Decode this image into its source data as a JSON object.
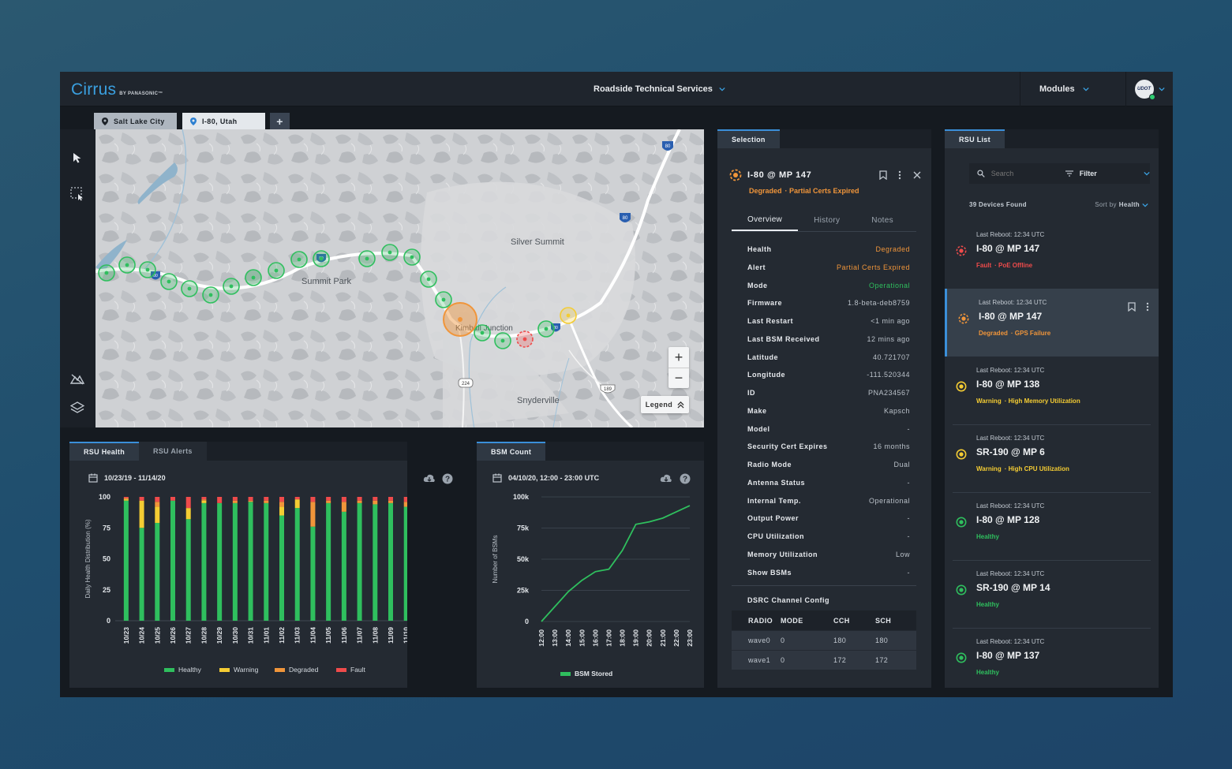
{
  "header": {
    "logo": "Cirrus",
    "logo_sub": "BY PANASONIC™",
    "org": "Roadside Technical Services",
    "modules": "Modules",
    "avatar_text": "UDOT"
  },
  "map_tabs": [
    "Salt Lake City",
    "I-80, Utah",
    "+"
  ],
  "map": {
    "labels": [
      "Silver Summit",
      "Summit Park",
      "Kimball Junction",
      "Snyderville"
    ],
    "shields": [
      "80",
      "80",
      "80",
      "80",
      "80",
      "224",
      "189"
    ],
    "legend": "Legend"
  },
  "health": {
    "tabs": [
      "RSU Health",
      "RSU Alerts"
    ],
    "date_range": "10/23/19 - 11/14/20",
    "chart_data": {
      "type": "bar",
      "stacked": true,
      "ylabel": "Daily Health Distribution (%)",
      "ylim": [
        0,
        100
      ],
      "yticks": [
        "100",
        "75",
        "50",
        "25",
        "0"
      ],
      "categories": [
        "10/23",
        "10/24",
        "10/25",
        "10/26",
        "10/27",
        "10/28",
        "10/29",
        "10/30",
        "10/31",
        "11/01",
        "11/02",
        "11/03",
        "11/04",
        "11/05",
        "11/06",
        "11/07",
        "11/08",
        "11/09",
        "11/10",
        "11/11",
        "11/12"
      ],
      "series": [
        {
          "name": "Healthy",
          "color": "#2fbf5e",
          "values": [
            97,
            75,
            79,
            97,
            82,
            95,
            95,
            95,
            96,
            95,
            85,
            91,
            76,
            95,
            88,
            95,
            94,
            95,
            92,
            95,
            93
          ]
        },
        {
          "name": "Warning",
          "color": "#f4cc33",
          "values": [
            1,
            22,
            13,
            0,
            9,
            2,
            0,
            0,
            0,
            0,
            7,
            7,
            0,
            0,
            0,
            0,
            0,
            0,
            0,
            0,
            0
          ]
        },
        {
          "name": "Degraded",
          "color": "#f0953a",
          "values": [
            1,
            0,
            4,
            0,
            0,
            1,
            0,
            2,
            1,
            2,
            4,
            0,
            20,
            2,
            8,
            2,
            3,
            2,
            4,
            2,
            4
          ]
        },
        {
          "name": "Fault",
          "color": "#ef4b4b",
          "values": [
            1,
            3,
            4,
            3,
            9,
            2,
            5,
            3,
            3,
            3,
            4,
            2,
            4,
            3,
            4,
            3,
            3,
            3,
            4,
            3,
            3
          ]
        }
      ]
    }
  },
  "bsm": {
    "tabs": [
      "BSM Count"
    ],
    "date_range": "04/10/20, 12:00 - 23:00 UTC",
    "chart_data": {
      "type": "line",
      "ylabel": "Number of BSMs",
      "ylim": [
        0,
        100000
      ],
      "yticks": [
        "100k",
        "75k",
        "50k",
        "25k",
        "0"
      ],
      "x": [
        "12:00",
        "13:00",
        "14:00",
        "15:00",
        "16:00",
        "17:00",
        "18:00",
        "19:00",
        "20:00",
        "21:00",
        "22:00",
        "23:00"
      ],
      "series": [
        {
          "name": "BSM Stored",
          "color": "#2fbf5e",
          "values": [
            0,
            12000,
            24000,
            33000,
            40000,
            42000,
            57000,
            78000,
            80000,
            83000,
            88000,
            93000
          ]
        }
      ]
    }
  },
  "selection": {
    "tab": "Selection",
    "title": "I-80 @ MP 147",
    "status": "Degraded",
    "alert": "· Partial Certs Expired",
    "subtabs": [
      "Overview",
      "History",
      "Notes"
    ],
    "rows": [
      {
        "k": "Health",
        "v": "Degraded",
        "color": "#f0953a"
      },
      {
        "k": "Alert",
        "v": "Partial Certs Expired",
        "color": "#f0953a"
      },
      {
        "k": "Mode",
        "v": "Operational",
        "color": "#2fbf5e"
      },
      {
        "k": "Firmware",
        "v": "1.8-beta-deb8759",
        "color": ""
      },
      {
        "k": "Last Restart",
        "v": "<1 min ago",
        "color": ""
      },
      {
        "k": "Last BSM Received",
        "v": "12 mins ago",
        "color": ""
      },
      {
        "k": "Latitude",
        "v": "40.721707",
        "color": ""
      },
      {
        "k": "Longitude",
        "v": "-111.520344",
        "color": ""
      },
      {
        "k": "ID",
        "v": "PNA234567",
        "color": ""
      },
      {
        "k": "Make",
        "v": "Kapsch",
        "color": ""
      },
      {
        "k": "Model",
        "v": "-",
        "color": ""
      },
      {
        "k": "Security Cert Expires",
        "v": "16 months",
        "color": ""
      },
      {
        "k": "Radio Mode",
        "v": "Dual",
        "color": ""
      },
      {
        "k": "Antenna Status",
        "v": "-",
        "color": ""
      },
      {
        "k": "Internal Temp.",
        "v": "Operational",
        "color": ""
      },
      {
        "k": "Output Power",
        "v": "-",
        "color": ""
      },
      {
        "k": "CPU Utilization",
        "v": "-",
        "color": ""
      },
      {
        "k": "Memory Utilization",
        "v": "Low",
        "color": ""
      },
      {
        "k": "Show BSMs",
        "v": "-",
        "color": ""
      }
    ],
    "dsrc": {
      "title": "DSRC Channel Config",
      "headers": [
        "RADIO",
        "MODE",
        "CCH",
        "SCH"
      ],
      "rows": [
        [
          "wave0",
          "0",
          "180",
          "180"
        ],
        [
          "wave1",
          "0",
          "172",
          "172"
        ]
      ]
    }
  },
  "rsu_list": {
    "tab": "RSU List",
    "search_placeholder": "Search",
    "filter": "Filter",
    "found": "39 Devices Found",
    "sort_prefix": "Sort by",
    "sort_value": "Health",
    "items": [
      {
        "reboot": "Last Reboot: 12:34 UTC",
        "name": "I-80 @ MP 147",
        "status": "Fault",
        "alert": "· PoE Offline",
        "level": "fault",
        "color": "#ef4b4b"
      },
      {
        "reboot": "Last Reboot: 12:34 UTC",
        "name": "I-80 @ MP 147",
        "status": "Degraded",
        "alert": "· GPS Failure",
        "level": "degraded",
        "color": "#f0953a"
      },
      {
        "reboot": "Last Reboot: 12:34 UTC",
        "name": "I-80 @ MP 138",
        "status": "Warning",
        "alert": "· High Memory Utilization",
        "level": "warning",
        "color": "#f4cc33"
      },
      {
        "reboot": "Last Reboot: 12:34 UTC",
        "name": "SR-190 @ MP 6",
        "status": "Warning",
        "alert": "· High CPU Utilization",
        "level": "warning",
        "color": "#f4cc33"
      },
      {
        "reboot": "Last Reboot: 12:34 UTC",
        "name": "I-80 @ MP 128",
        "status": "Healthy",
        "alert": "",
        "level": "healthy",
        "color": "#2fbf5e"
      },
      {
        "reboot": "Last Reboot: 12:34 UTC",
        "name": "SR-190 @ MP 14",
        "status": "Healthy",
        "alert": "",
        "level": "healthy",
        "color": "#2fbf5e"
      },
      {
        "reboot": "Last Reboot: 12:34 UTC",
        "name": "I-80 @ MP 137",
        "status": "Healthy",
        "alert": "",
        "level": "healthy",
        "color": "#2fbf5e"
      }
    ]
  }
}
